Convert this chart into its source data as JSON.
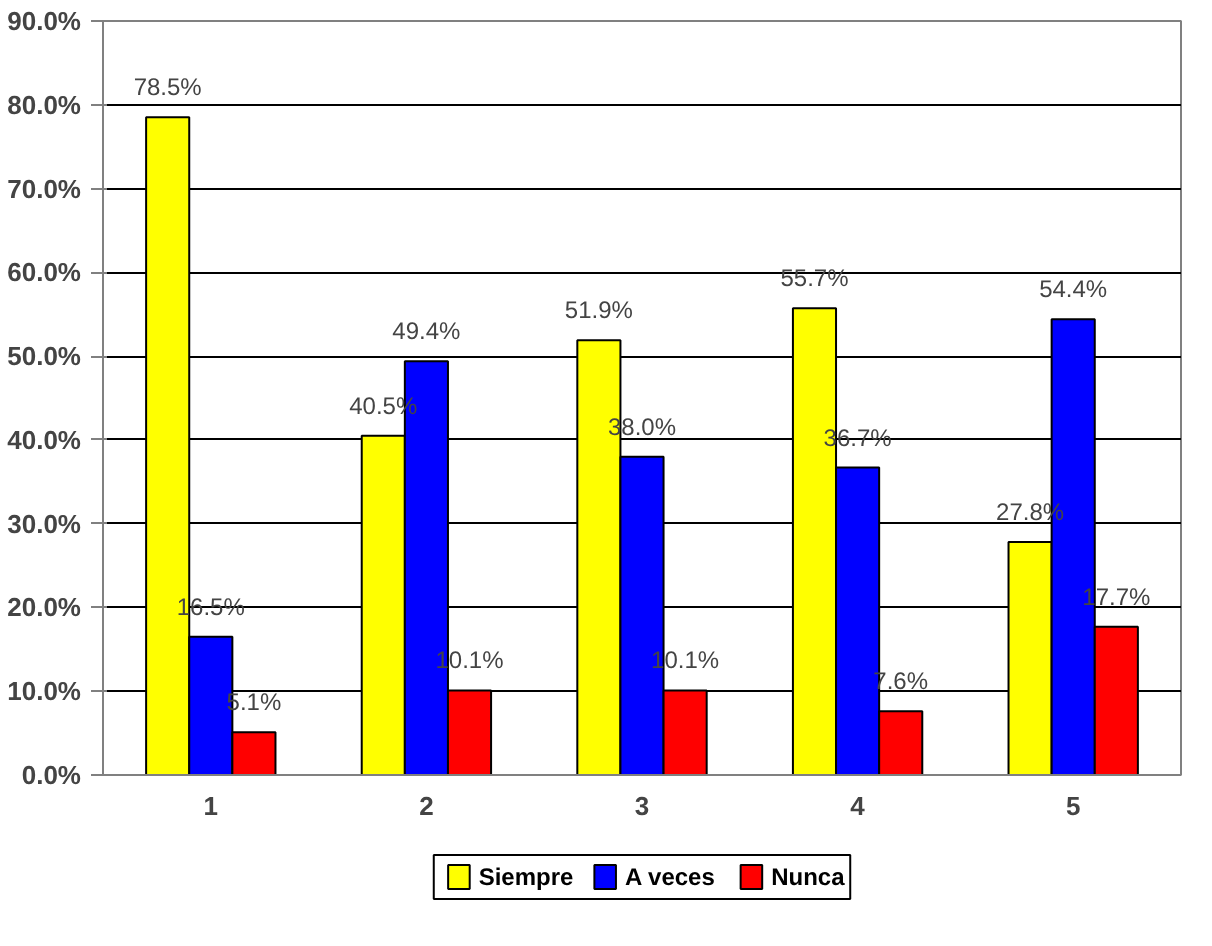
{
  "chart_data": {
    "type": "bar",
    "categories": [
      "1",
      "2",
      "3",
      "4",
      "5"
    ],
    "series": [
      {
        "name": "Siempre",
        "color": "#ffff00",
        "values": [
          78.5,
          40.5,
          51.9,
          55.7,
          27.8
        ],
        "value_labels": [
          "78.5%",
          "40.5%",
          "51.9%",
          "55.7%",
          "27.8%"
        ]
      },
      {
        "name": "A veces",
        "color": "#0000ff",
        "values": [
          16.5,
          49.4,
          38.0,
          36.7,
          54.4
        ],
        "value_labels": [
          "16.5%",
          "49.4%",
          "38.0%",
          "36.7%",
          "54.4%"
        ]
      },
      {
        "name": "Nunca",
        "color": "#ff0000",
        "values": [
          5.1,
          10.1,
          10.1,
          7.6,
          17.7
        ],
        "value_labels": [
          "5.1%",
          "10.1%",
          "10.1%",
          "7.6%",
          "17.7%"
        ]
      }
    ],
    "ylim": [
      0,
      90
    ],
    "yticks": [
      {
        "value": 0,
        "label": "0.0%"
      },
      {
        "value": 10,
        "label": "10.0%"
      },
      {
        "value": 20,
        "label": "20.0%"
      },
      {
        "value": 30,
        "label": "30.0%"
      },
      {
        "value": 40,
        "label": "40.0%"
      },
      {
        "value": 50,
        "label": "50.0%"
      },
      {
        "value": 60,
        "label": "60.0%"
      },
      {
        "value": 70,
        "label": "70.0%"
      },
      {
        "value": 80,
        "label": "80.0%"
      },
      {
        "value": 90,
        "label": "90.0%"
      }
    ],
    "grid": "y",
    "legend": "bottom"
  }
}
